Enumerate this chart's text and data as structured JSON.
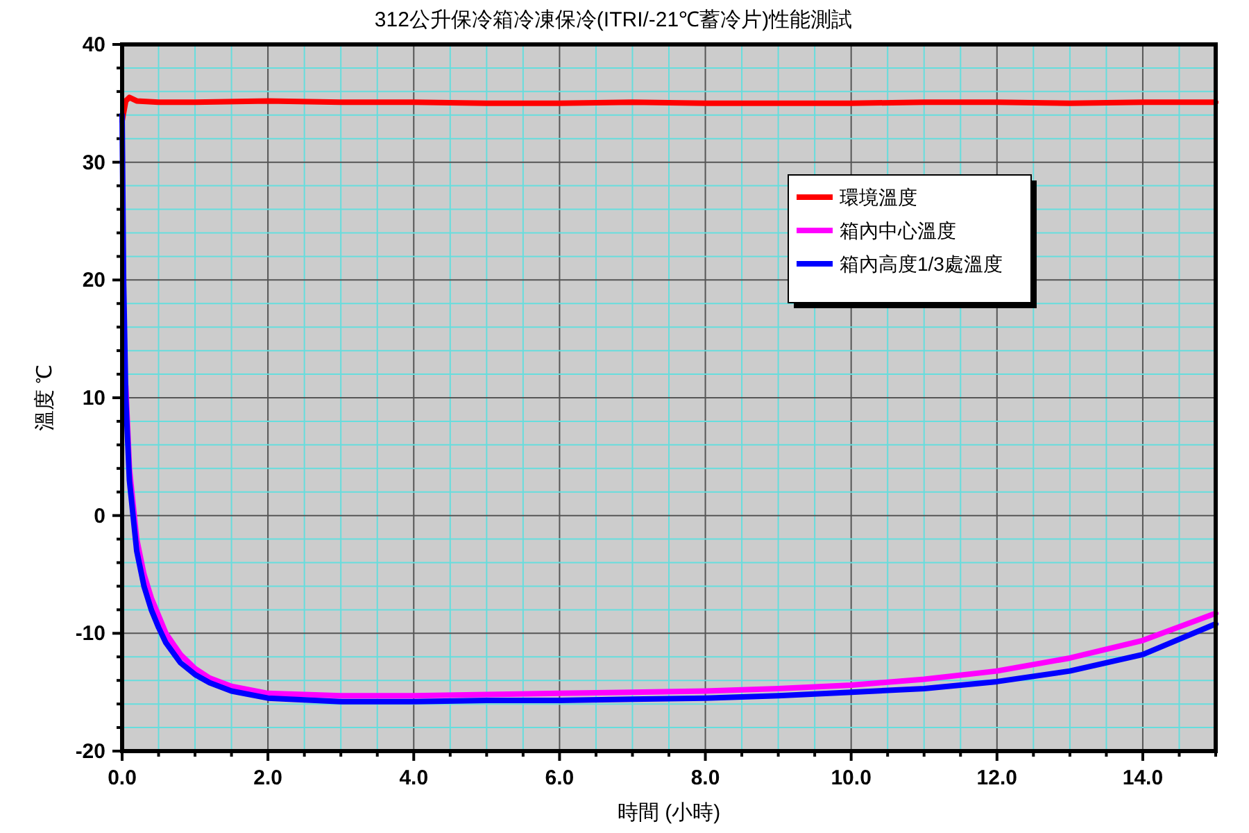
{
  "chart_data": {
    "type": "line",
    "title": "312公升保冷箱冷凍保冷(ITRI/-21℃蓄冷片)性能測試",
    "xlabel": "時間 (小時)",
    "ylabel": "溫度 ℃",
    "xlim": [
      0,
      15
    ],
    "ylim": [
      -20,
      40
    ],
    "xticks": [
      {
        "value": 0,
        "label": "0.0"
      },
      {
        "value": 0.5,
        "label": null
      },
      {
        "value": 1,
        "label": null
      },
      {
        "value": 1.5,
        "label": null
      },
      {
        "value": 2,
        "label": "2.0"
      },
      {
        "value": 2.5,
        "label": null
      },
      {
        "value": 3,
        "label": null
      },
      {
        "value": 3.5,
        "label": null
      },
      {
        "value": 4,
        "label": "4.0"
      },
      {
        "value": 4.5,
        "label": null
      },
      {
        "value": 5,
        "label": null
      },
      {
        "value": 5.5,
        "label": null
      },
      {
        "value": 6,
        "label": "6.0"
      },
      {
        "value": 6.5,
        "label": null
      },
      {
        "value": 7,
        "label": null
      },
      {
        "value": 7.5,
        "label": null
      },
      {
        "value": 8,
        "label": "8.0"
      },
      {
        "value": 8.5,
        "label": null
      },
      {
        "value": 9,
        "label": null
      },
      {
        "value": 9.5,
        "label": null
      },
      {
        "value": 10,
        "label": "10.0"
      },
      {
        "value": 10.5,
        "label": null
      },
      {
        "value": 11,
        "label": null
      },
      {
        "value": 11.5,
        "label": null
      },
      {
        "value": 12,
        "label": "12.0"
      },
      {
        "value": 12.5,
        "label": null
      },
      {
        "value": 13,
        "label": null
      },
      {
        "value": 13.5,
        "label": null
      },
      {
        "value": 14,
        "label": "14.0"
      },
      {
        "value": 14.5,
        "label": null
      },
      {
        "value": 15,
        "label": null
      }
    ],
    "yticks": [
      -20,
      {
        "value": -18,
        "label": null
      },
      {
        "value": -16,
        "label": null
      },
      {
        "value": -14,
        "label": null
      },
      {
        "value": -12,
        "label": null
      },
      -10,
      {
        "value": -8,
        "label": null
      },
      {
        "value": -6,
        "label": null
      },
      {
        "value": -4,
        "label": null
      },
      {
        "value": -2,
        "label": null
      },
      0,
      {
        "value": 2,
        "label": null
      },
      {
        "value": 4,
        "label": null
      },
      {
        "value": 6,
        "label": null
      },
      {
        "value": 8,
        "label": null
      },
      10,
      {
        "value": 12,
        "label": null
      },
      {
        "value": 14,
        "label": null
      },
      {
        "value": 16,
        "label": null
      },
      {
        "value": 18,
        "label": null
      },
      20,
      {
        "value": 22,
        "label": null
      },
      {
        "value": 24,
        "label": null
      },
      {
        "value": 26,
        "label": null
      },
      {
        "value": 28,
        "label": null
      },
      30,
      {
        "value": 32,
        "label": null
      },
      {
        "value": 34,
        "label": null
      },
      {
        "value": 36,
        "label": null
      },
      {
        "value": 38,
        "label": null
      },
      40
    ],
    "grid": true,
    "legend": "top right",
    "marker": "none",
    "line_style": "solid",
    "series": [
      {
        "name": "環境溫度",
        "color": "#ff0000",
        "x": [
          0,
          0.05,
          0.1,
          0.2,
          0.5,
          1,
          2,
          3,
          4,
          5,
          6,
          7,
          8,
          9,
          10,
          11,
          12,
          13,
          14,
          15
        ],
        "values": [
          33.5,
          35.2,
          35.5,
          35.2,
          35.1,
          35.1,
          35.2,
          35.1,
          35.1,
          35.0,
          35.0,
          35.1,
          35.0,
          35.0,
          35.0,
          35.1,
          35.1,
          35.0,
          35.1,
          35.1
        ]
      },
      {
        "name": "箱內中心溫度",
        "color": "#ff00ff",
        "x": [
          0.05,
          0.1,
          0.2,
          0.3,
          0.4,
          0.5,
          0.6,
          0.8,
          1,
          1.2,
          1.5,
          2,
          3,
          4,
          5,
          6,
          7,
          8,
          9,
          10,
          11,
          12,
          13,
          14,
          15
        ],
        "values": [
          11,
          4,
          -2,
          -5,
          -7,
          -8.5,
          -10,
          -11.8,
          -13,
          -13.8,
          -14.5,
          -15.1,
          -15.3,
          -15.3,
          -15.2,
          -15.1,
          -15.0,
          -14.9,
          -14.7,
          -14.4,
          -13.9,
          -13.2,
          -12.1,
          -10.6,
          -8.3
        ]
      },
      {
        "name": "箱內高度1/3處溫度",
        "color": "#0000ff",
        "x": [
          0,
          0.02,
          0.05,
          0.1,
          0.2,
          0.3,
          0.4,
          0.5,
          0.6,
          0.8,
          1,
          1.2,
          1.5,
          2,
          3,
          4,
          5,
          6,
          7,
          8,
          9,
          10,
          11,
          12,
          13,
          14,
          15
        ],
        "values": [
          34,
          20,
          10,
          3,
          -3,
          -6,
          -8,
          -9.5,
          -10.8,
          -12.5,
          -13.5,
          -14.2,
          -14.9,
          -15.5,
          -15.8,
          -15.8,
          -15.7,
          -15.7,
          -15.6,
          -15.5,
          -15.3,
          -15.0,
          -14.7,
          -14.1,
          -13.2,
          -11.8,
          -9.2
        ]
      }
    ]
  }
}
